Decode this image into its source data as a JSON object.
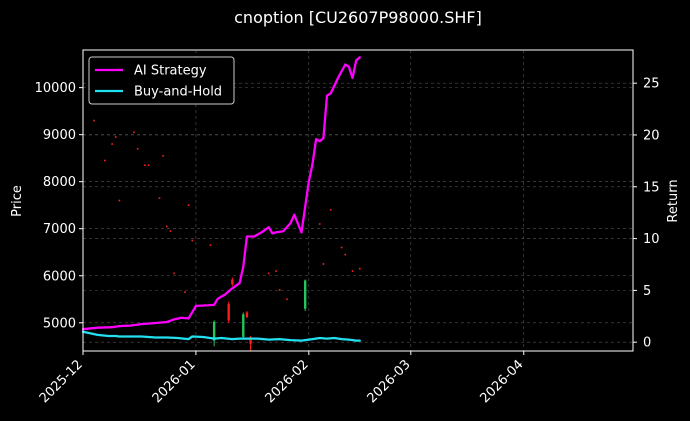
{
  "chart_data": {
    "type": "line",
    "title": "cnoption [CU2607P98000.SHF]",
    "xlabel": "",
    "ylabel": "Price",
    "y2label": "Return",
    "x_ticks": [
      "2025-12",
      "2026-01",
      "2026-02",
      "2026-03",
      "2026-04"
    ],
    "x_range": [
      "2025-12-01",
      "2026-04-30"
    ],
    "y_ticks": [
      5000,
      6000,
      7000,
      8000,
      9000,
      10000
    ],
    "ylim": [
      4400,
      10800
    ],
    "y2_ticks": [
      0,
      5,
      10,
      15,
      20,
      25
    ],
    "y2lim": [
      -0.85,
      28.2
    ],
    "grid": true,
    "legend": "upper-left",
    "background": "#000000",
    "series": [
      {
        "name": "AI Strategy",
        "axis": "right",
        "color": "#ff00ff",
        "x": [
          "2025-12-01",
          "2025-12-05",
          "2025-12-09",
          "2025-12-11",
          "2025-12-14",
          "2025-12-17",
          "2025-12-21",
          "2025-12-24",
          "2025-12-26",
          "2025-12-28",
          "2025-12-30",
          "2026-01-01",
          "2026-01-04",
          "2026-01-06",
          "2026-01-07",
          "2026-01-09",
          "2026-01-11",
          "2026-01-13",
          "2026-01-14",
          "2026-01-15",
          "2026-01-17",
          "2026-01-19",
          "2026-01-21",
          "2026-01-22",
          "2026-01-23",
          "2026-01-25",
          "2026-01-27",
          "2026-01-28",
          "2026-01-30",
          "2026-02-01",
          "2026-02-02",
          "2026-02-03",
          "2026-02-04",
          "2026-02-05",
          "2026-02-06",
          "2026-02-07",
          "2026-02-09",
          "2026-02-11",
          "2026-02-12",
          "2026-02-13",
          "2026-02-14",
          "2026-02-15"
        ],
        "values": [
          1.25,
          1.4,
          1.45,
          1.55,
          1.6,
          1.75,
          1.85,
          1.95,
          2.2,
          2.35,
          2.3,
          3.5,
          3.55,
          3.6,
          4.2,
          4.6,
          5.2,
          5.7,
          7.3,
          10.2,
          10.2,
          10.6,
          11.1,
          10.5,
          10.6,
          10.7,
          11.5,
          12.3,
          10.6,
          15.5,
          17.2,
          19.6,
          19.4,
          19.7,
          23.8,
          24.0,
          25.5,
          26.8,
          26.6,
          25.5,
          27.2,
          27.5
        ]
      },
      {
        "name": "Buy-and-Hold",
        "axis": "right",
        "color": "#22e0f0",
        "x": [
          "2025-12-01",
          "2025-12-05",
          "2025-12-08",
          "2025-12-10",
          "2025-12-11",
          "2025-12-14",
          "2025-12-17",
          "2025-12-21",
          "2025-12-24",
          "2025-12-27",
          "2025-12-30",
          "2025-12-31",
          "2026-01-03",
          "2026-01-06",
          "2026-01-08",
          "2026-01-11",
          "2026-01-13",
          "2026-01-15",
          "2026-01-18",
          "2026-01-21",
          "2026-01-24",
          "2026-01-27",
          "2026-01-30",
          "2026-02-02",
          "2026-02-04",
          "2026-02-06",
          "2026-02-08",
          "2026-02-10",
          "2026-02-12",
          "2026-02-14",
          "2026-02-15"
        ],
        "values": [
          1.0,
          0.7,
          0.6,
          0.6,
          0.55,
          0.55,
          0.55,
          0.45,
          0.45,
          0.4,
          0.3,
          0.55,
          0.5,
          0.35,
          0.4,
          0.3,
          0.35,
          0.35,
          0.35,
          0.25,
          0.3,
          0.2,
          0.15,
          0.3,
          0.4,
          0.35,
          0.4,
          0.3,
          0.25,
          0.15,
          0.15
        ]
      }
    ],
    "candles": [
      {
        "x": "2026-01-06",
        "open": 5020,
        "close": 4620,
        "high": 5050,
        "low": 4500,
        "color": "#22c55e"
      },
      {
        "x": "2026-01-10",
        "open": 5050,
        "close": 5400,
        "high": 5450,
        "low": 5000,
        "color": "#ff1a1a"
      },
      {
        "x": "2026-01-11",
        "open": 5820,
        "close": 5920,
        "high": 5960,
        "low": 5780,
        "color": "#ff1a1a"
      },
      {
        "x": "2026-01-14",
        "open": 5180,
        "close": 4700,
        "high": 5220,
        "low": 4650,
        "color": "#22c55e"
      },
      {
        "x": "2026-01-15",
        "open": 5120,
        "close": 5220,
        "high": 5250,
        "low": 5100,
        "color": "#ff1a1a"
      },
      {
        "x": "2026-01-16",
        "open": 4550,
        "close": 4700,
        "high": 4720,
        "low": 4400,
        "color": "#ff1a1a"
      },
      {
        "x": "2026-01-31",
        "open": 5900,
        "close": 5300,
        "high": 5920,
        "low": 5250,
        "color": "#22c55e"
      }
    ],
    "scatter_marks": [
      {
        "x": "2025-12-04",
        "y": 9300
      },
      {
        "x": "2025-12-07",
        "y": 8450
      },
      {
        "x": "2025-12-09",
        "y": 8800
      },
      {
        "x": "2025-12-10",
        "y": 8950
      },
      {
        "x": "2025-12-11",
        "y": 7600
      },
      {
        "x": "2025-12-15",
        "y": 9050
      },
      {
        "x": "2025-12-16",
        "y": 8700
      },
      {
        "x": "2025-12-18",
        "y": 8350
      },
      {
        "x": "2025-12-19",
        "y": 8350
      },
      {
        "x": "2025-12-22",
        "y": 7650
      },
      {
        "x": "2025-12-23",
        "y": 8550
      },
      {
        "x": "2025-12-24",
        "y": 7050
      },
      {
        "x": "2025-12-25",
        "y": 6950
      },
      {
        "x": "2025-12-26",
        "y": 6050
      },
      {
        "x": "2025-12-29",
        "y": 5650
      },
      {
        "x": "2025-12-30",
        "y": 7500
      },
      {
        "x": "2025-12-31",
        "y": 6750
      },
      {
        "x": "2026-01-05",
        "y": 6650
      },
      {
        "x": "2026-01-21",
        "y": 6050
      },
      {
        "x": "2026-01-23",
        "y": 6100
      },
      {
        "x": "2026-01-24",
        "y": 5700
      },
      {
        "x": "2026-01-26",
        "y": 5500
      },
      {
        "x": "2026-02-04",
        "y": 7100
      },
      {
        "x": "2026-02-05",
        "y": 6250
      },
      {
        "x": "2026-02-07",
        "y": 7400
      },
      {
        "x": "2026-02-10",
        "y": 6600
      },
      {
        "x": "2026-02-11",
        "y": 6450
      },
      {
        "x": "2026-02-13",
        "y": 6100
      },
      {
        "x": "2026-02-15",
        "y": 6150
      }
    ]
  }
}
